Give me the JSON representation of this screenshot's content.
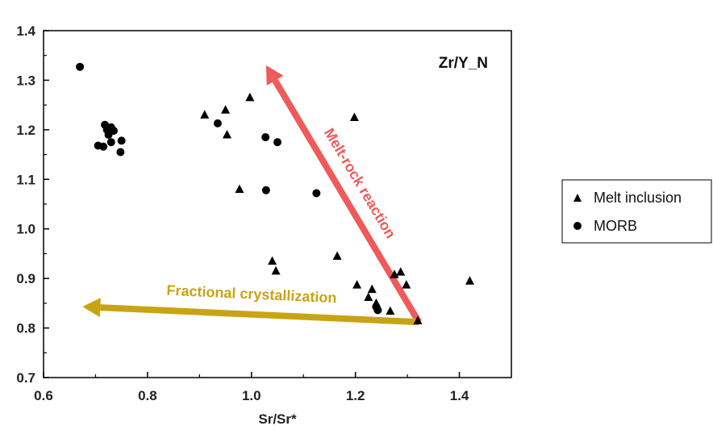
{
  "chart_data": {
    "type": "scatter",
    "title": "",
    "xlabel": "Sr/Sr*",
    "ylabel": "",
    "xlim": [
      0.6,
      1.5
    ],
    "ylim": [
      0.7,
      1.4
    ],
    "xticks": [
      "0.6",
      "0.8",
      "1.0",
      "1.2",
      "1.4"
    ],
    "yticks": [
      "0.7",
      "0.8",
      "0.9",
      "1.0",
      "1.1",
      "1.2",
      "1.3",
      "1.4"
    ],
    "grid": false,
    "panel_label": "Zr/Y_N",
    "legend_position": "right",
    "series": [
      {
        "name": "Melt inclusion",
        "marker": "triangle",
        "color": "#000000",
        "points": [
          [
            0.91,
            1.23
          ],
          [
            0.95,
            1.24
          ],
          [
            0.953,
            1.19
          ],
          [
            0.997,
            1.265
          ],
          [
            0.977,
            1.08
          ],
          [
            1.04,
            0.935
          ],
          [
            1.047,
            0.915
          ],
          [
            1.165,
            0.945
          ],
          [
            1.198,
            1.225
          ],
          [
            1.203,
            0.887
          ],
          [
            1.225,
            0.862
          ],
          [
            1.232,
            0.878
          ],
          [
            1.24,
            0.85
          ],
          [
            1.267,
            0.834
          ],
          [
            1.275,
            0.908
          ],
          [
            1.287,
            0.913
          ],
          [
            1.298,
            0.887
          ],
          [
            1.32,
            0.815
          ],
          [
            1.42,
            0.895
          ]
        ]
      },
      {
        "name": "MORB",
        "marker": "circle",
        "color": "#000000",
        "points": [
          [
            0.67,
            1.327
          ],
          [
            0.705,
            1.168
          ],
          [
            0.715,
            1.166
          ],
          [
            0.718,
            1.21
          ],
          [
            0.722,
            1.2
          ],
          [
            0.725,
            1.19
          ],
          [
            0.73,
            1.175
          ],
          [
            0.73,
            1.205
          ],
          [
            0.735,
            1.198
          ],
          [
            0.748,
            1.155
          ],
          [
            0.75,
            1.178
          ],
          [
            0.935,
            1.213
          ],
          [
            1.027,
            1.185
          ],
          [
            1.028,
            1.078
          ],
          [
            1.05,
            1.175
          ],
          [
            1.125,
            1.072
          ],
          [
            1.24,
            0.843
          ],
          [
            1.243,
            0.836
          ]
        ]
      }
    ],
    "annotations": [
      {
        "text": "Melt-rock reaction",
        "color": "#ef5a5a",
        "arrow_from": [
          1.322,
          0.812
        ],
        "arrow_to": [
          1.028,
          1.33
        ]
      },
      {
        "text": "Fractional crystallization",
        "color": "#c8a414",
        "arrow_from": [
          1.322,
          0.812
        ],
        "arrow_to": [
          0.675,
          0.843
        ]
      }
    ]
  }
}
